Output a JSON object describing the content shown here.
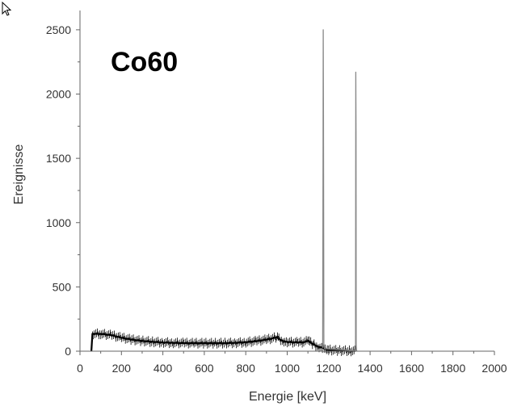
{
  "chart_data": {
    "type": "line",
    "title": "Co60",
    "xlabel": "Energie [keV]",
    "ylabel": "Ereignisse",
    "xlim": [
      0,
      2000
    ],
    "ylim": [
      0,
      2650
    ],
    "x_ticks": [
      0,
      200,
      400,
      600,
      800,
      1000,
      1200,
      1400,
      1600,
      1800,
      2000
    ],
    "y_ticks": [
      0,
      500,
      1000,
      1500,
      2000,
      2500
    ],
    "grid": false,
    "legend": "none",
    "series": [
      {
        "color": "#000000",
        "x": [
          55,
          60,
          100,
          150,
          200,
          250,
          300,
          350,
          400,
          450,
          500,
          550,
          600,
          650,
          700,
          750,
          800,
          850,
          900,
          930,
          950,
          960,
          980,
          1000,
          1050,
          1080,
          1100,
          1110,
          1130,
          1150,
          1170,
          1175,
          1190,
          1200,
          1250,
          1300,
          1330
        ],
        "y": [
          0,
          135,
          135,
          125,
          105,
          90,
          80,
          73,
          68,
          65,
          63,
          62,
          62,
          62,
          63,
          65,
          70,
          78,
          90,
          100,
          110,
          95,
          80,
          72,
          68,
          70,
          80,
          70,
          50,
          35,
          28,
          25,
          12,
          10,
          5,
          3,
          2
        ]
      },
      {
        "color": "#888888",
        "x": [
          1169,
          1171,
          1173,
          1174,
          1175,
          1177,
          1180,
          1329,
          1330,
          1331,
          1332,
          1333,
          1335,
          1337
        ],
        "y": [
          30,
          30,
          1600,
          2500,
          1800,
          40,
          20,
          5,
          10,
          2170,
          1700,
          50,
          5,
          2
        ]
      }
    ]
  }
}
